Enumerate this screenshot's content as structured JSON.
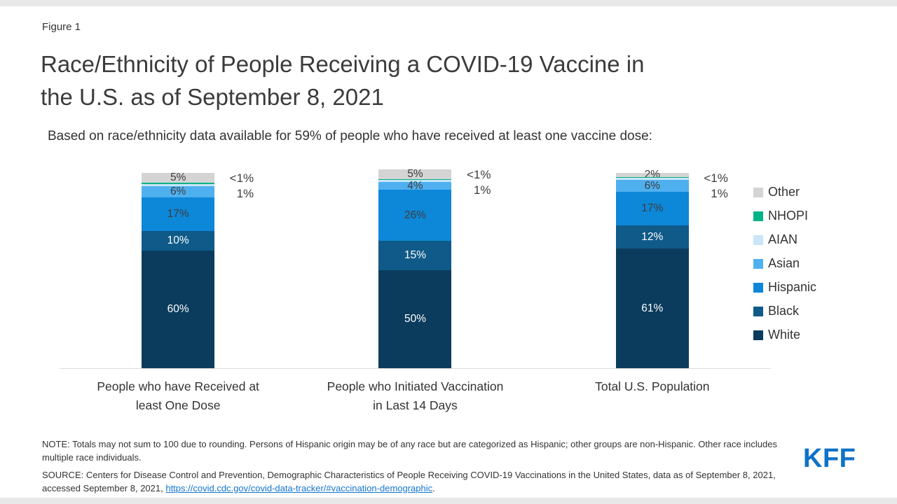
{
  "page": {
    "figure_label": "Figure 1",
    "title_lines": [
      "Race/Ethnicity of People Receiving a COVID-19 Vaccine in",
      "the U.S. as of September 8, 2021"
    ],
    "subtitle": "Based on race/ethnicity data available for 59% of people who have received at least one vaccine dose:"
  },
  "chart_data": {
    "type": "bar",
    "stacked": true,
    "unit": "percent",
    "ylim": [
      0,
      100
    ],
    "legend_position": "right",
    "baseline_color": "#dddddd",
    "categories": [
      "People who have Received at least One Dose",
      "People who Initiated Vaccination in Last 14 Days",
      "Total U.S. Population"
    ],
    "series": [
      {
        "name": "White",
        "color": "#0b3c5d",
        "values": [
          60,
          50,
          61
        ],
        "display": [
          "60%",
          "50%",
          "61%"
        ],
        "label_placement": "inside",
        "label_color": "#ffffff"
      },
      {
        "name": "Black",
        "color": "#0f5a89",
        "values": [
          10,
          15,
          12
        ],
        "display": [
          "10%",
          "15%",
          "12%"
        ],
        "label_placement": "inside",
        "label_color": "#ffffff"
      },
      {
        "name": "Hispanic",
        "color": "#0d87d8",
        "values": [
          17,
          26,
          17
        ],
        "display": [
          "17%",
          "26%",
          "17%"
        ],
        "label_placement": "inside",
        "label_color": "#3d3d3d"
      },
      {
        "name": "Asian",
        "color": "#4fb0f0",
        "values": [
          6,
          4,
          6
        ],
        "display": [
          "6%",
          "4%",
          "6%"
        ],
        "label_placement": "inside",
        "label_color": "#3d3d3d"
      },
      {
        "name": "AIAN",
        "color": "#c8e6f8",
        "values": [
          1,
          1,
          1
        ],
        "display": [
          "1%",
          "1%",
          "1%"
        ],
        "label_placement": "outside",
        "label_color": "#3d3d3d"
      },
      {
        "name": "NHOPI",
        "color": "#00b388",
        "values": [
          0.6,
          0.6,
          0.6
        ],
        "display": [
          "<1%",
          "<1%",
          "<1%"
        ],
        "label_placement": "outside",
        "label_color": "#3d3d3d"
      },
      {
        "name": "Other",
        "color": "#d4d4d4",
        "values": [
          5,
          5,
          2
        ],
        "display": [
          "5%",
          "5%",
          "2%"
        ],
        "label_placement": "inside",
        "label_color": "#3d3d3d"
      }
    ]
  },
  "notes": {
    "note": "NOTE: Totals may not sum to 100 due to rounding. Persons of Hispanic origin may be of any race but are categorized as Hispanic; other groups are non-Hispanic. Other race includes multiple race individuals.",
    "source_text": "SOURCE: Centers for Disease Control and Prevention, Demographic Characteristics of People Receiving COVID-19 Vaccinations in the United States, data as of September 8, 2021, accessed September 8, 2021, ",
    "source_link": "https://covid.cdc.gov/covid-data-tracker/#vaccination-demographic",
    "source_suffix": "."
  },
  "logo_text": "KFF",
  "colors": {
    "link": "#1374cf",
    "logo": "#0d72c9"
  }
}
